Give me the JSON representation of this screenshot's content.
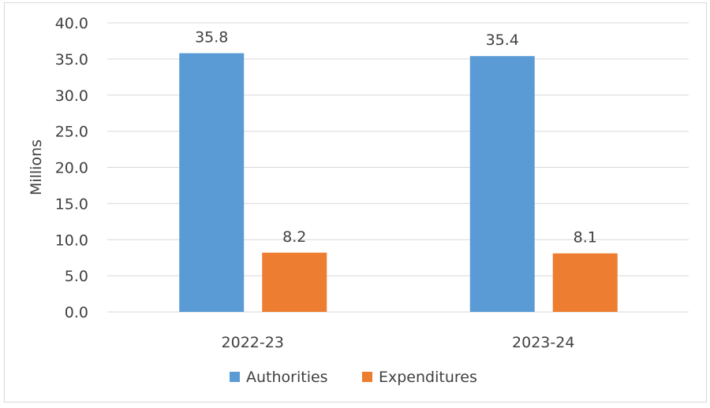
{
  "chart_data": {
    "type": "bar",
    "title": "",
    "xlabel": "",
    "ylabel": "Millions",
    "ylim": [
      0,
      40
    ],
    "yticks": [
      "0.0",
      "5.0",
      "10.0",
      "15.0",
      "20.0",
      "25.0",
      "30.0",
      "35.0",
      "40.0"
    ],
    "categories": [
      "2022-23",
      "2023-24"
    ],
    "series": [
      {
        "name": "Authorities",
        "values": [
          35.8,
          35.4
        ],
        "labels": [
          "35.8",
          "35.4"
        ],
        "color": "#5b9bd5"
      },
      {
        "name": "Expenditures",
        "values": [
          8.2,
          8.1
        ],
        "labels": [
          "8.2",
          "8.1"
        ],
        "color": "#ed7d31"
      }
    ],
    "grid": true,
    "legend_position": "bottom"
  }
}
